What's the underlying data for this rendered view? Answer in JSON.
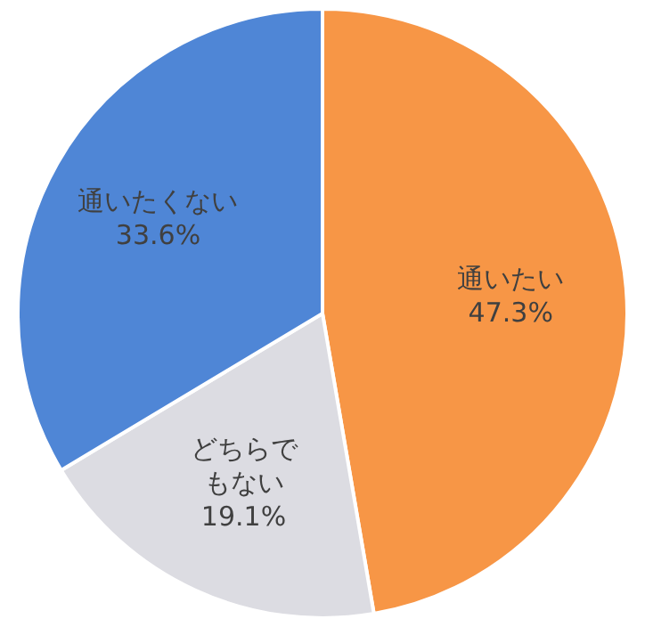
{
  "chart_data": {
    "type": "pie",
    "categories": [
      "通いたい",
      "どちらでもない",
      "通いたくない"
    ],
    "values": [
      47.3,
      19.1,
      33.6
    ],
    "value_labels": [
      "47.3%",
      "19.1%",
      "33.6%"
    ],
    "colors": [
      "#f79646",
      "#dcdce2",
      "#4f86d6"
    ],
    "legend": false
  }
}
